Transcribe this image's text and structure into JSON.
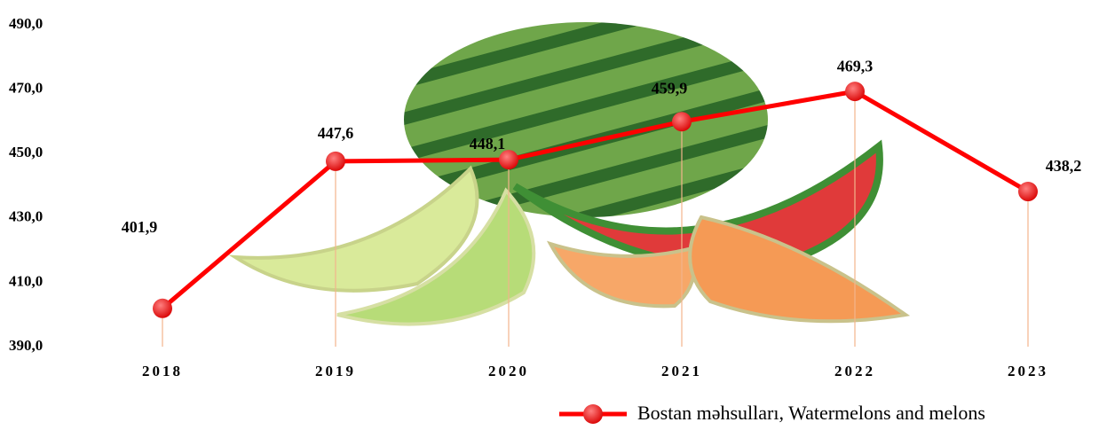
{
  "chart_data": {
    "type": "line",
    "categories": [
      "2018",
      "2019",
      "2020",
      "2021",
      "2022",
      "2023"
    ],
    "series": [
      {
        "name": "Bostan məhsulları, Watermelons and melons",
        "color": "#ff0000",
        "values": [
          401.9,
          447.6,
          448.1,
          459.9,
          469.3,
          438.2
        ],
        "value_labels": [
          "401,9",
          "447,6",
          "448,1",
          "459,9",
          "469,3",
          "438,2"
        ]
      }
    ],
    "ylim": [
      390,
      490
    ],
    "yticks": [
      {
        "value": 390,
        "label": "390,0"
      },
      {
        "value": 410,
        "label": "410,0"
      },
      {
        "value": 430,
        "label": "430,0"
      },
      {
        "value": 450,
        "label": "450,0"
      },
      {
        "value": 470,
        "label": "470,0"
      },
      {
        "value": 490,
        "label": "490,0"
      }
    ],
    "legend": "bottom-right"
  }
}
